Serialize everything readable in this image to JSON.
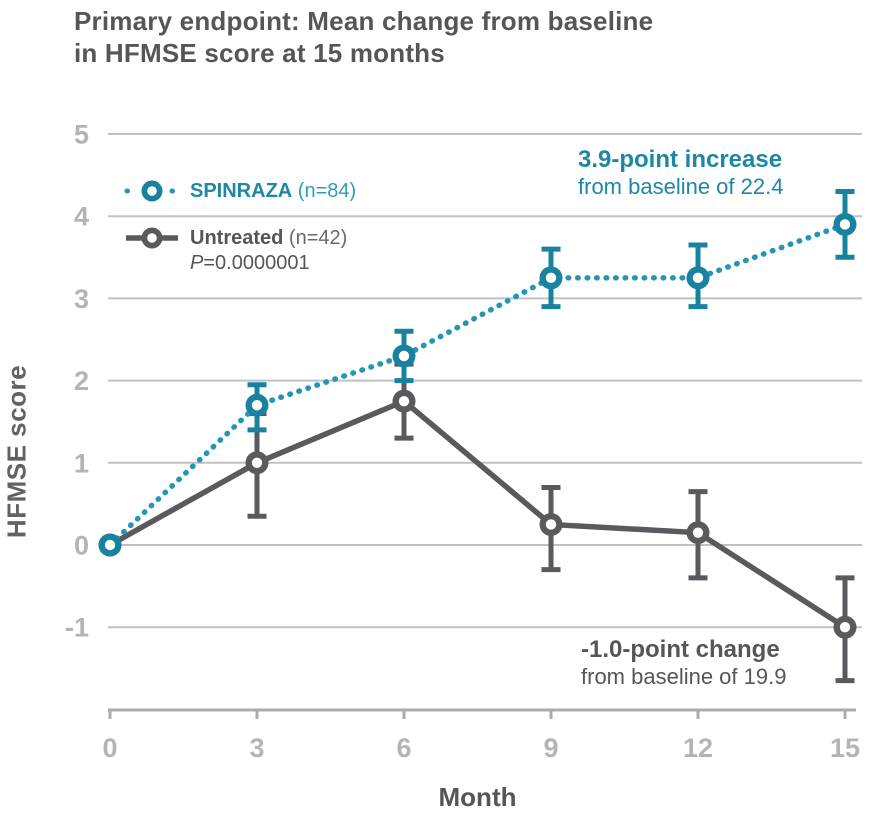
{
  "title": {
    "line1": "Primary endpoint: Mean change from baseline",
    "line2": "in HFMSE score at 15 months"
  },
  "legend": {
    "spinraza": {
      "name": "SPINRAZA",
      "n": "(n=84)"
    },
    "untreated": {
      "name": "Untreated",
      "n": "(n=42)"
    },
    "p_italic": "P",
    "p_rest": "=0.0000001"
  },
  "annotations": {
    "spinraza": {
      "line1": "3.9-point increase",
      "line2": "from baseline of 22.4"
    },
    "untreated": {
      "line1": "-1.0-point change",
      "line2": "from baseline of 19.9"
    }
  },
  "colors": {
    "teal_line": "#2496B4",
    "teal_marker": "#19829F",
    "teal_text": "#1D87A5",
    "gray_line": "#595A5D",
    "text_dark": "#54565A",
    "tick_label": "#B2B4B6",
    "gridline": "#C0C1C3",
    "axis_line": "#A9ABAD",
    "marker_center": "#FFFFFF"
  },
  "chart_data": {
    "type": "line",
    "title": "Primary endpoint: Mean change from baseline in HFMSE score at 15 months",
    "xlabel": "Month",
    "ylabel": "HFMSE score",
    "x": [
      0,
      3,
      6,
      9,
      12,
      15
    ],
    "xticks": [
      "0",
      "3",
      "6",
      "9",
      "12",
      "15"
    ],
    "yticks": [
      5,
      4,
      3,
      2,
      1,
      0,
      -1
    ],
    "xlim": [
      0,
      15
    ],
    "ylim": [
      -1,
      5
    ],
    "grid": "horizontal",
    "legend_position": "upper-left-inside",
    "series": [
      {
        "name": "SPINRAZA",
        "n": 84,
        "style": "dotted",
        "line_color": "#2496B4",
        "marker_color": "#19829F",
        "values": [
          0,
          1.7,
          2.3,
          3.25,
          3.25,
          3.9
        ],
        "error_low": [
          null,
          1.4,
          2.0,
          2.9,
          2.9,
          3.5
        ],
        "error_high": [
          null,
          1.95,
          2.6,
          3.6,
          3.65,
          4.3
        ]
      },
      {
        "name": "Untreated",
        "n": 42,
        "style": "solid",
        "line_color": "#595A5D",
        "marker_color": "#595A5D",
        "values": [
          0,
          1.0,
          1.75,
          0.25,
          0.15,
          -1.0
        ],
        "error_low": [
          null,
          0.35,
          1.3,
          -0.3,
          -0.4,
          -1.65
        ],
        "error_high": [
          null,
          1.6,
          2.2,
          0.7,
          0.65,
          -0.4
        ]
      }
    ],
    "p_value": "P=0.0000001",
    "endpoint_annotations": [
      "3.9-point increase from baseline of 22.4",
      "-1.0-point change from baseline of 19.9"
    ]
  }
}
